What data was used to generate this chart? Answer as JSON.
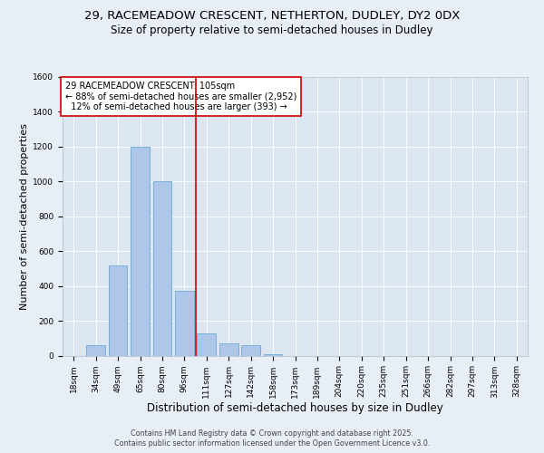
{
  "title_line1": "29, RACEMEADOW CRESCENT, NETHERTON, DUDLEY, DY2 0DX",
  "title_line2": "Size of property relative to semi-detached houses in Dudley",
  "xlabel": "Distribution of semi-detached houses by size in Dudley",
  "ylabel": "Number of semi-detached properties",
  "categories": [
    "18sqm",
    "34sqm",
    "49sqm",
    "65sqm",
    "80sqm",
    "96sqm",
    "111sqm",
    "127sqm",
    "142sqm",
    "158sqm",
    "173sqm",
    "189sqm",
    "204sqm",
    "220sqm",
    "235sqm",
    "251sqm",
    "266sqm",
    "282sqm",
    "297sqm",
    "313sqm",
    "328sqm"
  ],
  "values": [
    0,
    60,
    520,
    1200,
    1000,
    370,
    130,
    70,
    60,
    10,
    0,
    0,
    0,
    0,
    0,
    0,
    0,
    0,
    0,
    0,
    0
  ],
  "bar_color": "#aec6e8",
  "bar_edge_color": "#5a9fd4",
  "vline_x_index": 6,
  "vline_color": "#cc0000",
  "annotation_text": "29 RACEMEADOW CRESCENT: 105sqm\n← 88% of semi-detached houses are smaller (2,952)\n  12% of semi-detached houses are larger (393) →",
  "annotation_box_color": "#ffffff",
  "annotation_box_edge": "#cc0000",
  "ylim": [
    0,
    1600
  ],
  "yticks": [
    0,
    200,
    400,
    600,
    800,
    1000,
    1200,
    1400,
    1600
  ],
  "background_color": "#e8eef5",
  "plot_bg_color": "#dce6f0",
  "footer_text": "Contains HM Land Registry data © Crown copyright and database right 2025.\nContains public sector information licensed under the Open Government Licence v3.0.",
  "title_fontsize": 9.5,
  "subtitle_fontsize": 8.5,
  "axis_label_fontsize": 8,
  "tick_fontsize": 6.5,
  "annotation_fontsize": 7,
  "footer_fontsize": 5.8
}
